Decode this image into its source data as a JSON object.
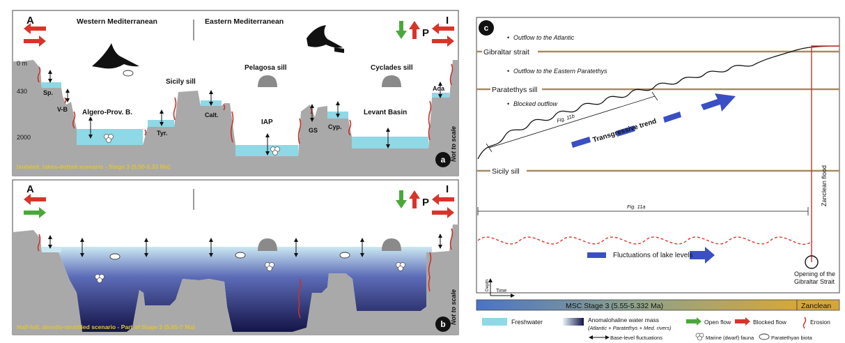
{
  "panel_a": {
    "left_gate": "A",
    "right_gate": "I",
    "west_title": "Western Mediterranean",
    "east_title": "Eastern Mediterranean",
    "p_label": "P",
    "depth_ticks": [
      "0 m",
      "430",
      "2000"
    ],
    "sills": {
      "pelagosa": "Pelagosa sill",
      "sicily": "Sicily sill",
      "cyclades": "Cyclades sill"
    },
    "basins": {
      "sp": "Sp.",
      "vb": "V-B",
      "algero": "Algero-Prov. B.",
      "tyr": "Tyr.",
      "calt": "Calt.",
      "iap": "IAP",
      "gs": "GS",
      "cyp": "Cyp.",
      "levant": "Levant Basin",
      "ada": "Ada"
    },
    "not_to_scale": "Not to scale",
    "scenario": "Isolated, lakes-dotted scenario - Stage 3 (5.55-5.33 Ma)",
    "badge": "a"
  },
  "panel_b": {
    "left_gate": "A",
    "right_gate": "I",
    "p_label": "P",
    "not_to_scale": "Not to scale",
    "scenario": "Half-full, density-stratified scenario - Part of Stage 3 (5.55-? Ma)",
    "badge": "b"
  },
  "panel_c": {
    "badge": "c",
    "outflow_atlantic": "Outflow to the Atlantic",
    "gibraltar": "Gibraltar strait",
    "outflow_paratethys": "Outflow to the Eastern Paratethys",
    "paratethys": "Paratethys sill",
    "blocked": "Blocked outflow",
    "fig11b": "Fig. 11b",
    "trend": "Transgressive trend",
    "sicily": "Sicily sill",
    "fig11a": "Fig. 11a",
    "zanclean_flood": "Zanclean flood",
    "fluctuations": "Fluctuations of lake levels",
    "opening_line1": "Opening of the",
    "opening_line2": "Gibraltar Strait",
    "depth": "Depth",
    "time": "Time",
    "stage_bar": "MSC Stage 3 (5.55-5.332 Ma)",
    "zanclean": "Zanclean"
  },
  "legend": {
    "freshwater": "Freshwater",
    "anomalohaline_line1": "Anomalohaline water mass",
    "anomalohaline_line2": "(Atlantic + Paratethys + Med. rivers)",
    "base_level": "Base-level fluctuations",
    "open_flow": "Open flow",
    "blocked_flow": "Blocked flow",
    "erosion": "Erosion",
    "marine_fauna": "Marine (dwarf) fauna",
    "paratethyan": "Paratethyan biota"
  },
  "colors": {
    "freshwater": "#8fd8e6",
    "deep_water": "#20205a",
    "rock": "#a9a9a9",
    "erosion": "#c8322a",
    "open_flow": "#4aa83a",
    "sill_line": "#a68a64",
    "scenario_text": "#e2c23a",
    "arrow_blue": "#3a4fc4"
  }
}
